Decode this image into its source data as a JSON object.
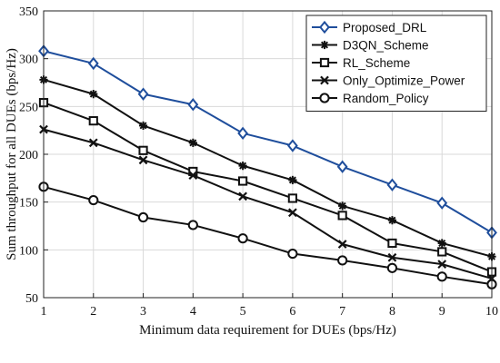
{
  "chart_data": {
    "type": "line",
    "title": "",
    "xlabel": "Minimum data requirement for DUEs (bps/Hz)",
    "ylabel": "Sum throughput for all DUEs (bps/Hz)",
    "x": [
      1,
      2,
      3,
      4,
      5,
      6,
      7,
      8,
      9,
      10
    ],
    "xlim": [
      1,
      10
    ],
    "ylim": [
      50,
      350
    ],
    "xticks": [
      "1",
      "2",
      "3",
      "4",
      "5",
      "6",
      "7",
      "8",
      "9",
      "10"
    ],
    "yticks": [
      "50",
      "100",
      "150",
      "200",
      "250",
      "300",
      "350"
    ],
    "grid": true,
    "legend_position": "top-right",
    "series": [
      {
        "name": "Proposed_DRL",
        "marker": "diamond",
        "color": "#1f4e9c",
        "values": [
          308,
          295,
          263,
          252,
          222,
          209,
          187,
          168,
          149,
          118
        ]
      },
      {
        "name": "D3QN_Scheme",
        "marker": "star",
        "color": "#111111",
        "values": [
          278,
          263,
          230,
          212,
          188,
          173,
          146,
          131,
          107,
          93
        ]
      },
      {
        "name": "RL_Scheme",
        "marker": "square",
        "color": "#111111",
        "values": [
          254,
          235,
          204,
          182,
          172,
          154,
          136,
          107,
          98,
          77
        ]
      },
      {
        "name": "Only_Optimize_Power",
        "marker": "x",
        "color": "#111111",
        "values": [
          226,
          212,
          194,
          178,
          156,
          139,
          106,
          92,
          85,
          70
        ]
      },
      {
        "name": "Random_Policy",
        "marker": "circle",
        "color": "#111111",
        "values": [
          166,
          152,
          134,
          126,
          112,
          96,
          89,
          81,
          72,
          64
        ]
      }
    ]
  }
}
